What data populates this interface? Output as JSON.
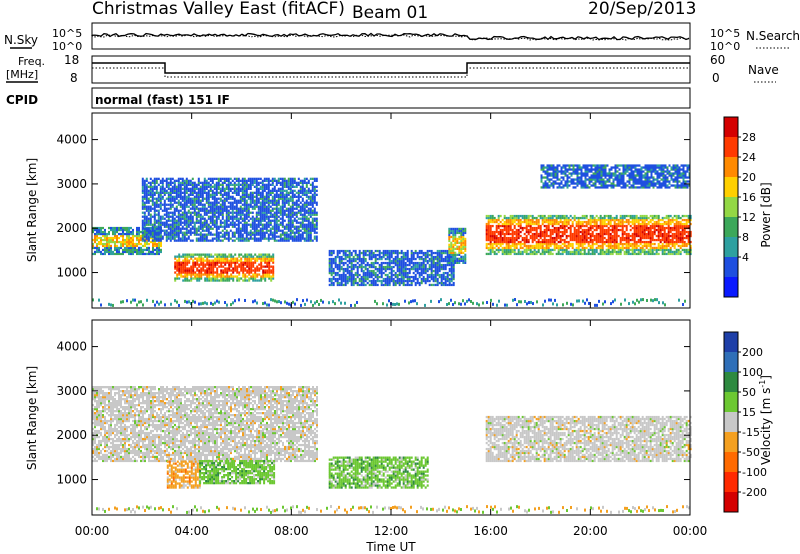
{
  "header": {
    "title": "Christmas Valley East (fitACF)",
    "beam": "Beam 01",
    "date": "20/Sep/2013"
  },
  "noise_panel": {
    "left_label": "N.Sky",
    "right_label": "N.Search",
    "left_ticks": [
      "10^5",
      "10^0"
    ],
    "right_ticks": [
      "10^5",
      "10^0"
    ]
  },
  "freq_panel": {
    "left_label_1": "Freq.",
    "left_label_2": "[MHz]",
    "right_label": "Nave",
    "left_ticks": [
      "18",
      "8"
    ],
    "right_ticks": [
      "60",
      "0"
    ]
  },
  "cpid": {
    "label": "CPID",
    "value": "normal (fast) 151 IF"
  },
  "chart_data": [
    {
      "type": "heatmap",
      "name": "power",
      "ylabel": "Slant Range [km]",
      "yticks": [
        1000,
        2000,
        3000,
        4000
      ],
      "ylim": [
        200,
        4600
      ],
      "xlim_hours": [
        0,
        24
      ],
      "colorbar": {
        "label": "Power [dB]",
        "ticks": [
          "28",
          "24",
          "20",
          "16",
          "12",
          "8",
          "4"
        ],
        "colors": [
          "#d40000",
          "#ff3a00",
          "#ff8a00",
          "#ffd000",
          "#93d845",
          "#3ca85a",
          "#2ea0a0",
          "#1e4fe0",
          "#0a1aff"
        ]
      },
      "regions": [
        {
          "t0": 0.0,
          "t1": 2.8,
          "r0": 1400,
          "r1": 2000,
          "level": "medium"
        },
        {
          "t0": 2.0,
          "t1": 9.0,
          "r0": 1700,
          "r1": 3100,
          "level": "low"
        },
        {
          "t0": 3.3,
          "t1": 7.3,
          "r0": 800,
          "r1": 1400,
          "level": "high"
        },
        {
          "t0": 9.5,
          "t1": 14.5,
          "r0": 700,
          "r1": 1500,
          "level": "low"
        },
        {
          "t0": 14.3,
          "t1": 15.0,
          "r0": 1200,
          "r1": 2000,
          "level": "medium"
        },
        {
          "t0": 15.8,
          "t1": 24.0,
          "r0": 1400,
          "r1": 2300,
          "level": "high"
        },
        {
          "t0": 18.0,
          "t1": 24.0,
          "r0": 2900,
          "r1": 3400,
          "level": "low"
        }
      ]
    },
    {
      "type": "heatmap",
      "name": "velocity",
      "ylabel": "Slant Range [km]",
      "xlabel": "Time UT",
      "yticks": [
        1000,
        2000,
        3000,
        4000
      ],
      "ylim": [
        200,
        4600
      ],
      "xlim_hours": [
        0,
        24
      ],
      "xticks": [
        "00:00",
        "04:00",
        "08:00",
        "12:00",
        "16:00",
        "20:00",
        "00:00"
      ],
      "colorbar": {
        "label_main": "Velocity",
        "label_unit": "[m s",
        "label_exp": "-1",
        "label_close": "]",
        "ticks": [
          "200",
          "100",
          "50",
          "15",
          "-15",
          "-50",
          "-100",
          "-200"
        ],
        "colors": [
          "#1e3fa8",
          "#2f6fb8",
          "#2e8a40",
          "#6cc832",
          "#c8c8c8",
          "#f4a020",
          "#ff6a00",
          "#ff2a00",
          "#d40000"
        ]
      },
      "regions": [
        {
          "t0": 0.0,
          "t1": 9.0,
          "r0": 1400,
          "r1": 3100,
          "level": "ground"
        },
        {
          "t0": 3.0,
          "t1": 4.3,
          "r0": 800,
          "r1": 1400,
          "level": "negative"
        },
        {
          "t0": 4.3,
          "t1": 7.3,
          "r0": 900,
          "r1": 1400,
          "level": "positive"
        },
        {
          "t0": 9.5,
          "t1": 13.5,
          "r0": 800,
          "r1": 1500,
          "level": "positive"
        },
        {
          "t0": 15.8,
          "t1": 24.0,
          "r0": 1400,
          "r1": 2400,
          "level": "ground"
        }
      ]
    }
  ]
}
